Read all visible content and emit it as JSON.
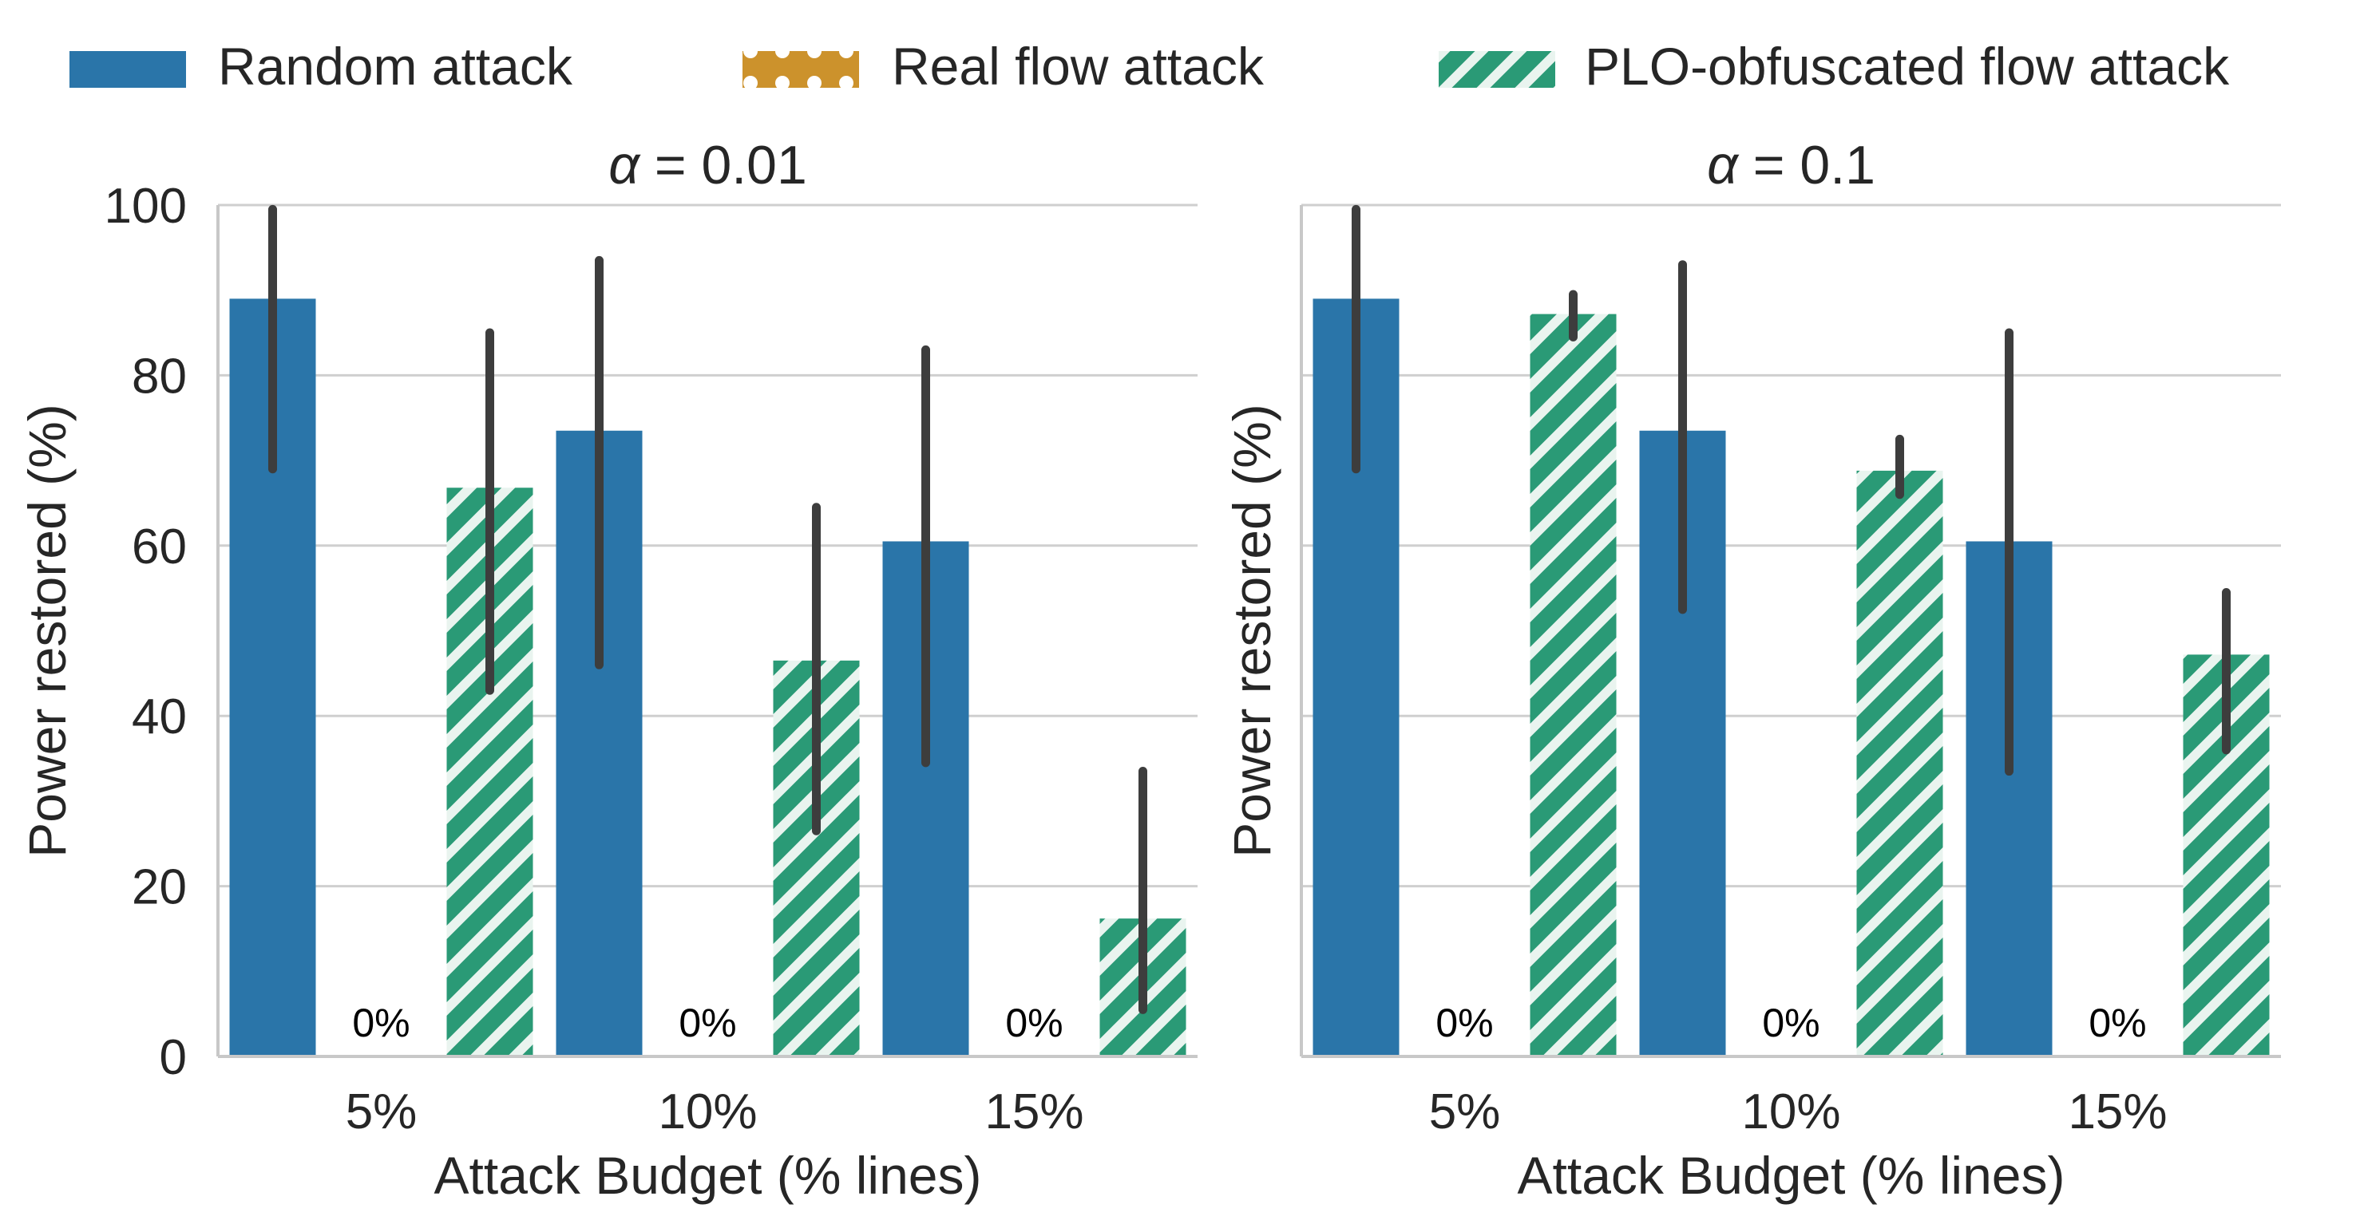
{
  "legend": {
    "items": [
      {
        "label": "Random attack",
        "color": "#2a75a9",
        "pattern": "solid"
      },
      {
        "label": "Real flow attack",
        "color": "#cc922c",
        "pattern": "dots"
      },
      {
        "label": "PLO-obfuscated flow attack",
        "color": "#2a9a76",
        "pattern": "hatch"
      }
    ],
    "location": "top-center"
  },
  "chart_data": [
    {
      "type": "bar",
      "title": "α = 0.01",
      "title_symbol": "α",
      "title_rest": " = 0.01",
      "xlabel": "Attack Budget (% lines)",
      "ylabel": "Power restored (%)",
      "categories": [
        "5%",
        "10%",
        "15%"
      ],
      "ylim": [
        0,
        100
      ],
      "yticks": [
        0,
        20,
        40,
        60,
        80,
        100
      ],
      "ytick_labels_shown": true,
      "grid": "horizontal",
      "series": [
        {
          "name": "Random attack",
          "values": [
            89,
            73.5,
            60.5
          ],
          "ci_low": [
            69,
            46,
            34.5
          ],
          "ci_high": [
            99.5,
            93.5,
            83
          ]
        },
        {
          "name": "Real flow attack",
          "values": [
            0,
            0,
            0
          ],
          "value_labels": [
            "0%",
            "0%",
            "0%"
          ]
        },
        {
          "name": "PLO-obfuscated flow attack",
          "values": [
            66.8,
            46.5,
            16.2
          ],
          "ci_low": [
            43,
            26.5,
            5.5
          ],
          "ci_high": [
            85,
            64.5,
            33.5
          ]
        }
      ]
    },
    {
      "type": "bar",
      "title": "α = 0.1",
      "title_symbol": "α",
      "title_rest": " = 0.1",
      "xlabel": "Attack Budget (% lines)",
      "ylabel": "Power restored (%)",
      "categories": [
        "5%",
        "10%",
        "15%"
      ],
      "ylim": [
        0,
        100
      ],
      "yticks": [
        0,
        20,
        40,
        60,
        80,
        100
      ],
      "ytick_labels_shown": false,
      "grid": "horizontal",
      "series": [
        {
          "name": "Random attack",
          "values": [
            89,
            73.5,
            60.5
          ],
          "ci_low": [
            69,
            52.5,
            33.5
          ],
          "ci_high": [
            99.5,
            93,
            85
          ]
        },
        {
          "name": "Real flow attack",
          "values": [
            0,
            0,
            0
          ],
          "value_labels": [
            "0%",
            "0%",
            "0%"
          ]
        },
        {
          "name": "PLO-obfuscated flow attack",
          "values": [
            87.2,
            68.8,
            47.2
          ],
          "ci_low": [
            84.5,
            66,
            36
          ],
          "ci_high": [
            89.5,
            72.5,
            54.5
          ]
        }
      ]
    }
  ]
}
